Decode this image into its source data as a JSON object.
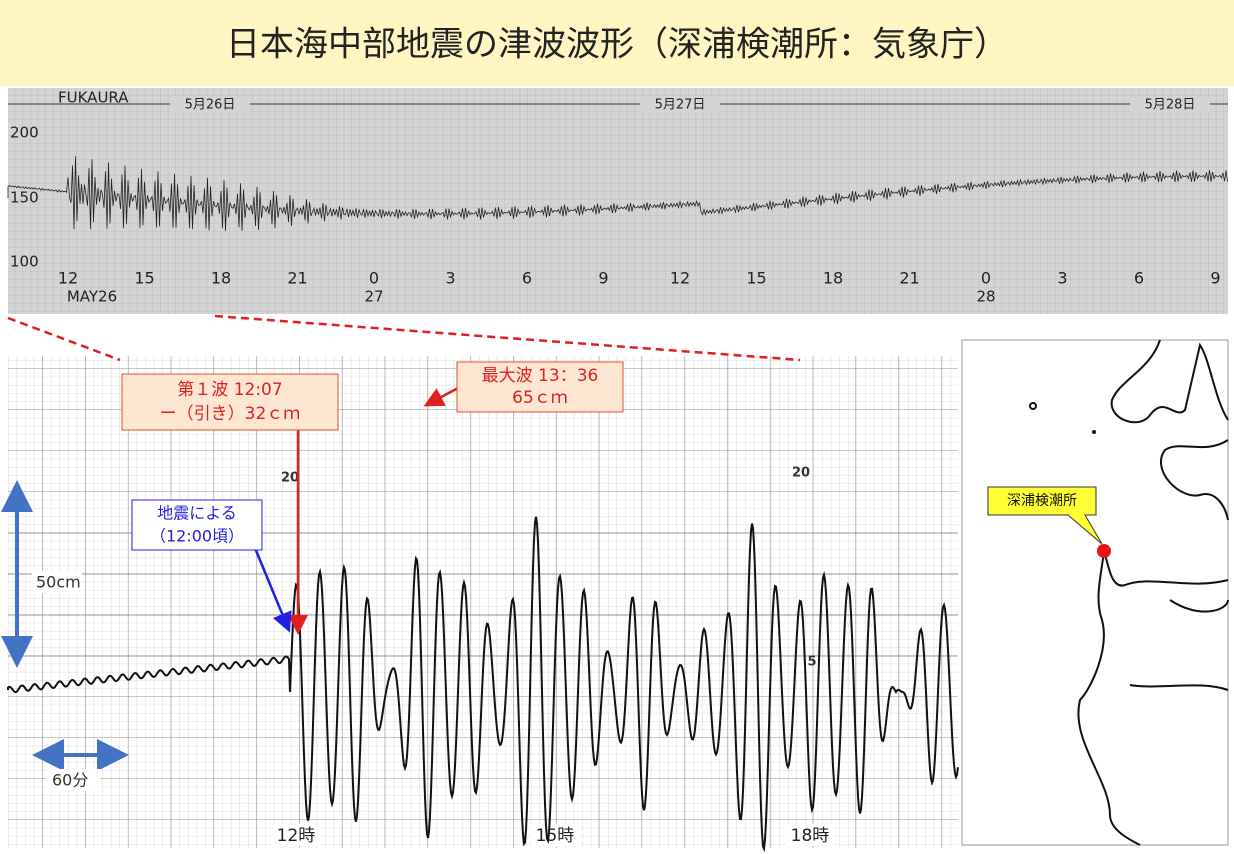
{
  "title": "日本海中部地震の津波波形（深浦検潮所：気象庁）",
  "marigram": {
    "station": "FUKAURA",
    "dates": [
      "5月26日",
      "5月27日",
      "5月28日"
    ],
    "y_labels": [
      "200",
      "150",
      "100"
    ],
    "hour_labels": [
      "12",
      "15",
      "18",
      "21",
      "0",
      "3",
      "6",
      "9",
      "12",
      "15",
      "18",
      "21",
      "0",
      "3",
      "6",
      "9"
    ],
    "day_labels": [
      "MAY26",
      "27",
      "28"
    ]
  },
  "detail": {
    "first_wave": {
      "line1": "第１波 12:07",
      "line2": "ー（引き）32ｃｍ"
    },
    "max_wave": {
      "line1": "最大波 13：36",
      "line2": "65ｃｍ"
    },
    "quake": {
      "line1": "地震による",
      "line2": "（12:00頃）"
    },
    "scale_height": "50cm",
    "scale_time": "60分",
    "hour_labels": [
      "12時",
      "15時",
      "18時"
    ],
    "chart_marks": [
      "20",
      "20",
      "5"
    ]
  },
  "map": {
    "station_label": "深浦検潮所"
  }
}
